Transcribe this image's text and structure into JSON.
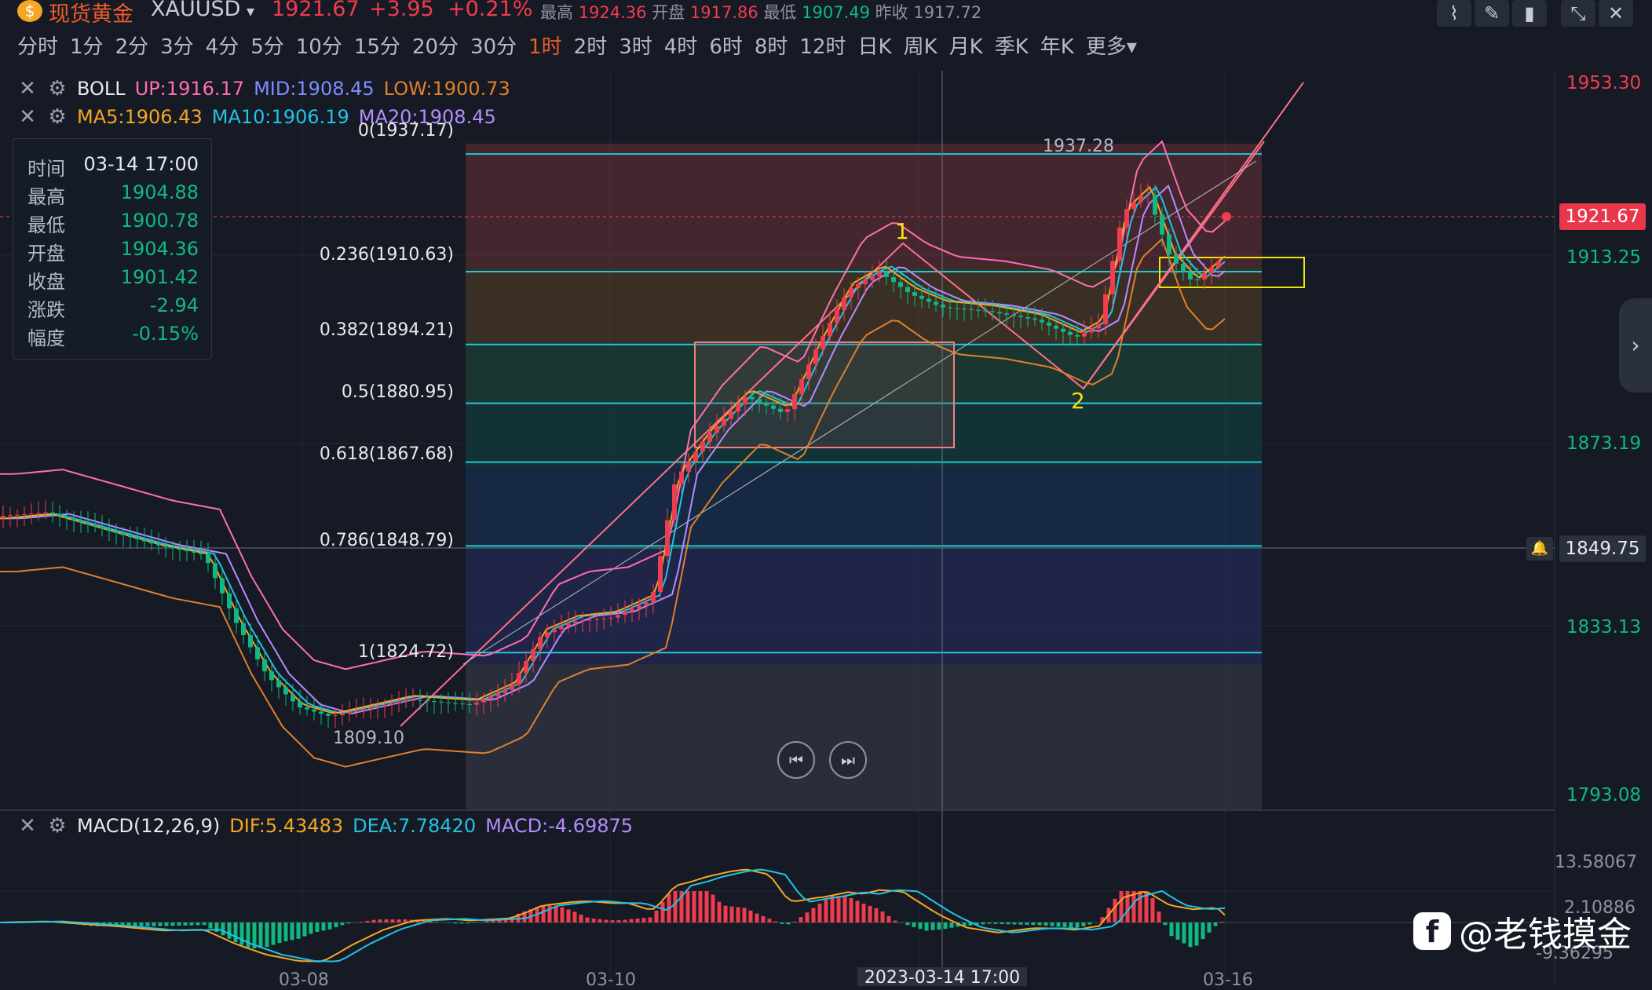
{
  "header": {
    "symbol_name": "现货黄金",
    "symbol_code": "XAUUSD",
    "price": "1921.67",
    "change": "+3.95",
    "change_pct": "+0.21%",
    "high_label": "最高",
    "high": "1924.36",
    "open_label": "开盘",
    "open": "1917.86",
    "low_label": "最低",
    "low": "1907.49",
    "prev_label": "昨收",
    "prev": "1917.72"
  },
  "periods": [
    "分时",
    "1分",
    "2分",
    "3分",
    "4分",
    "5分",
    "10分",
    "15分",
    "20分",
    "30分",
    "1时",
    "2时",
    "3时",
    "4时",
    "6时",
    "8时",
    "12时",
    "日K",
    "周K",
    "月K",
    "季K",
    "年K",
    "更多"
  ],
  "active_period": "1时",
  "boll": {
    "name": "BOLL",
    "up": "UP:1916.17",
    "mid": "MID:1908.45",
    "low": "LOW:1900.73"
  },
  "ma": {
    "ma5": "MA5:1906.43",
    "ma10": "MA10:1906.19",
    "ma20": "MA20:1908.45"
  },
  "info": {
    "time_label": "时间",
    "time": "03-14 17:00",
    "high_label": "最高",
    "high": "1904.88",
    "low_label": "最低",
    "low": "1900.78",
    "open_label": "开盘",
    "open": "1904.36",
    "close_label": "收盘",
    "close": "1901.42",
    "chg_label": "涨跌",
    "chg": "-2.94",
    "amp_label": "幅度",
    "amp": "-0.15%"
  },
  "fib": [
    "0(1937.17)",
    "0.236(1910.63)",
    "0.382(1894.21)",
    "0.5(1880.95)",
    "0.618(1867.68)",
    "0.786(1848.79)",
    "1(1824.72)"
  ],
  "annotations": {
    "high_mark": "1937.28",
    "low_mark": "1809.10",
    "wave1": "1",
    "wave2": "2"
  },
  "yaxis": [
    "1953.30",
    "1913.25",
    "1873.19",
    "1833.13",
    "1793.08"
  ],
  "price_tag": "1921.67",
  "cross_tag": "1849.75",
  "macd": {
    "name": "MACD(12,26,9)",
    "dif": "DIF:5.43483",
    "dea": "DEA:7.78420",
    "macd": "MACD:-4.69875"
  },
  "macd_axis": [
    "13.58067",
    "2.10886",
    "-9.36295"
  ],
  "xaxis": [
    "03-08",
    "03-10",
    "03-16"
  ],
  "cross_time": "2023-03-14 17:00",
  "watermark": "@老钱摸金",
  "colors": {
    "up": "#f03c4f",
    "down": "#10b981",
    "boll_up": "#ff6fb0",
    "boll_mid": "#7f8cff",
    "boll_low": "#e0802a",
    "ma5": "#f5a623",
    "ma10": "#22c3e6",
    "ma20": "#b58cff",
    "fib_line": "#22c8d6"
  },
  "chart_data": {
    "type": "candlestick",
    "ylim": [
      1793.08,
      1953.3
    ],
    "fib_levels": [
      1937.17,
      1910.63,
      1894.21,
      1880.95,
      1867.68,
      1848.79,
      1824.72
    ]
  }
}
